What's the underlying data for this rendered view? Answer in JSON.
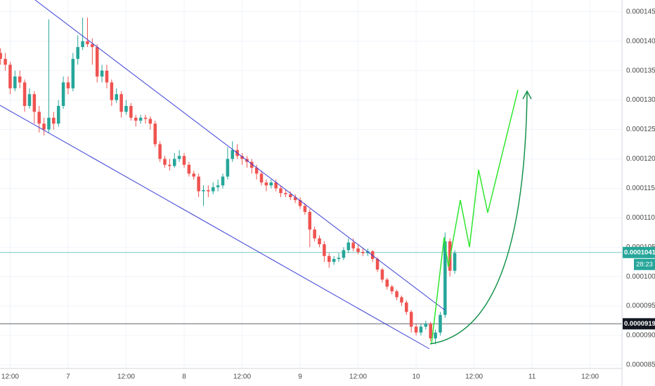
{
  "chart_data": {
    "type": "candlestick",
    "x": [
      -14,
      -13,
      -12,
      -11,
      -10,
      -9,
      -8,
      -7,
      -6,
      -5,
      -4,
      -3,
      -2,
      -1,
      0,
      1,
      2,
      3,
      4,
      5,
      6,
      7,
      8,
      9,
      10,
      11,
      12,
      13,
      14,
      15,
      16,
      17,
      18,
      19,
      20,
      21,
      22,
      23,
      24,
      25,
      26,
      27,
      28,
      29,
      30,
      31,
      32,
      33,
      34,
      35,
      36,
      37,
      38,
      39,
      40,
      41,
      42,
      43,
      44,
      45,
      46,
      47,
      48,
      49,
      50,
      51,
      52,
      53,
      54,
      55,
      56,
      57,
      58,
      59,
      60,
      61,
      62,
      63,
      64,
      65,
      66,
      67,
      68,
      69,
      70,
      71,
      72,
      73,
      74,
      75,
      76,
      77,
      78,
      79,
      80
    ],
    "open": [
      0.000138,
      0.000137,
      0.000136,
      0.000132,
      0.000134,
      0.000133,
      0.000129,
      0.000131,
      0.000128,
      0.000126,
      0.000125,
      0.000127,
      0.000126,
      0.000129,
      0.000133,
      0.000132,
      0.000137,
      0.000139,
      0.00014,
      0.0001395,
      0.000139,
      0.000134,
      0.000135,
      0.000133,
      0.00013,
      0.000131,
      0.000128,
      0.000129,
      0.000127,
      0.0001265,
      0.000127,
      0.0001268,
      0.000126,
      0.0001225,
      0.00012,
      0.000119,
      0.0001188,
      0.00012,
      0.0001205,
      0.000119,
      0.0001175,
      0.000117,
      0.0001145,
      0.0001147,
      0.0001145,
      0.0001152,
      0.0001155,
      0.000117,
      0.00012,
      0.0001215,
      0.0001205,
      0.00012,
      0.0001195,
      0.0001185,
      0.0001175,
      0.000116,
      0.0001155,
      0.000116,
      0.000115,
      0.0001142,
      0.000114,
      0.0001135,
      0.000113,
      0.000112,
      0.000111,
      0.000108,
      0.0001065,
      0.0001055,
      0.0001035,
      0.0001025,
      0.000103,
      0.0001032,
      0.0001045,
      0.0001058,
      0.0001048,
      0.0001042,
      0.000104,
      0.0001043,
      0.000103,
      0.0001012,
      9.95e-05,
      9.83e-05,
      9.75e-05,
      9.65e-05,
      9.56e-05,
      9.4e-05,
      9.15e-05,
      9.05e-05,
      9.15e-05,
      9.2e-05,
      8.95e-05,
      9.05e-05,
      9.35e-05,
      0.000106,
      0.000101
    ],
    "high": [
      0.0001388,
      0.000138,
      0.0001365,
      0.000135,
      0.000135,
      0.0001335,
      0.000132,
      0.0001315,
      0.000129,
      0.000127,
      0.0001437,
      0.000128,
      0.00013,
      0.000134,
      0.000134,
      0.000138,
      0.000141,
      0.000144,
      0.000144,
      0.0001405,
      0.0001395,
      0.000136,
      0.000136,
      0.0001335,
      0.000132,
      0.0001315,
      0.00013,
      0.0001295,
      0.0001275,
      0.0001275,
      0.0001275,
      0.0001272,
      0.0001265,
      0.000123,
      0.0001205,
      0.00012,
      0.000121,
      0.0001215,
      0.000121,
      0.0001195,
      0.000118,
      0.0001175,
      0.0001155,
      0.0001155,
      0.000116,
      0.0001165,
      0.0001175,
      0.000122,
      0.000123,
      0.0001225,
      0.000121,
      0.0001205,
      0.00012,
      0.000119,
      0.000118,
      0.0001165,
      0.0001165,
      0.0001165,
      0.0001155,
      0.0001148,
      0.0001145,
      0.000114,
      0.0001135,
      0.0001125,
      0.0001115,
      0.0001085,
      0.000107,
      0.000106,
      0.000104,
      0.0001035,
      0.000104,
      0.000105,
      0.0001065,
      0.0001065,
      0.0001055,
      0.0001048,
      0.0001048,
      0.0001045,
      0.0001033,
      0.0001015,
      9.98e-05,
      9.86e-05,
      9.78e-05,
      9.68e-05,
      9.6e-05,
      9.43e-05,
      9.2e-05,
      9.2e-05,
      9.25e-05,
      9.23e-05,
      9.1e-05,
      9.4e-05,
      0.0001075,
      0.0001065,
      0.0001045
    ],
    "low": [
      0.000136,
      0.000135,
      0.000131,
      0.0001315,
      0.000132,
      0.000128,
      0.0001285,
      0.000126,
      0.0001245,
      0.000124,
      0.0001245,
      0.000125,
      0.0001255,
      0.0001285,
      0.000131,
      0.0001315,
      0.000136,
      0.0001385,
      0.000139,
      0.000136,
      0.000133,
      0.000133,
      0.000132,
      0.000129,
      0.0001295,
      0.000127,
      0.0001275,
      0.0001265,
      0.0001255,
      0.000126,
      0.000126,
      0.000125,
      0.000122,
      0.0001195,
      0.0001185,
      0.000118,
      0.0001185,
      0.0001195,
      0.0001185,
      0.000117,
      0.0001165,
      0.0001135,
      0.000112,
      0.0001135,
      0.000114,
      0.0001145,
      0.000115,
      0.0001165,
      0.0001195,
      0.00012,
      0.000119,
      0.0001185,
      0.0001175,
      0.0001165,
      0.0001155,
      0.0001145,
      0.000115,
      0.0001145,
      0.0001135,
      0.0001135,
      0.000113,
      0.0001125,
      0.0001115,
      0.0001105,
      0.000105,
      0.000106,
      0.000105,
      0.0001025,
      0.0001015,
      0.000102,
      0.0001025,
      0.0001028,
      0.000104,
      0.0001043,
      0.0001038,
      0.0001035,
      0.0001035,
      0.0001025,
      0.0001008,
      9.9e-05,
      9.78e-05,
      9.7e-05,
      9.6e-05,
      9.5e-05,
      9.35e-05,
      9.05e-05,
      9e-05,
      9e-05,
      9.1e-05,
      8.9e-05,
      8.85e-05,
      9e-05,
      9.3e-05,
      0.0001,
      0.0001005
    ],
    "close": [
      0.000137,
      0.000136,
      0.000132,
      0.000134,
      0.000133,
      0.000129,
      0.000131,
      0.000128,
      0.000126,
      0.000125,
      0.000127,
      0.000126,
      0.000129,
      0.000133,
      0.000132,
      0.000137,
      0.000139,
      0.00014,
      0.0001395,
      0.000139,
      0.000134,
      0.000135,
      0.000133,
      0.00013,
      0.000131,
      0.000128,
      0.000129,
      0.000127,
      0.0001265,
      0.000127,
      0.0001268,
      0.000126,
      0.0001225,
      0.00012,
      0.000119,
      0.0001188,
      0.00012,
      0.0001205,
      0.000119,
      0.0001175,
      0.000117,
      0.0001145,
      0.0001147,
      0.0001145,
      0.0001152,
      0.0001155,
      0.000117,
      0.00012,
      0.0001215,
      0.0001205,
      0.00012,
      0.0001195,
      0.0001185,
      0.0001175,
      0.000116,
      0.0001155,
      0.000116,
      0.000115,
      0.0001142,
      0.000114,
      0.0001135,
      0.000113,
      0.000112,
      0.000111,
      0.000108,
      0.0001065,
      0.0001055,
      0.0001035,
      0.0001025,
      0.000103,
      0.0001032,
      0.0001045,
      0.0001058,
      0.0001048,
      0.0001042,
      0.000104,
      0.0001043,
      0.000103,
      0.0001012,
      9.95e-05,
      9.83e-05,
      9.75e-05,
      9.65e-05,
      9.56e-05,
      9.4e-05,
      9.15e-05,
      9.05e-05,
      9.15e-05,
      9.2e-05,
      8.95e-05,
      9.05e-05,
      9.35e-05,
      0.000106,
      0.000101,
      0.000104
    ],
    "up_color": "#26a69a",
    "down_color": "#ef5350",
    "xlim": [
      -14.1,
      114.6
    ],
    "xticks": [
      {
        "value": -12,
        "label": "12:00"
      },
      {
        "value": 0,
        "label": "7"
      },
      {
        "value": 12,
        "label": "12:00"
      },
      {
        "value": 24,
        "label": "8"
      },
      {
        "value": 36,
        "label": "12:00"
      },
      {
        "value": 48,
        "label": "9"
      },
      {
        "value": 60,
        "label": "12:00"
      },
      {
        "value": 72,
        "label": "10"
      },
      {
        "value": 84,
        "label": "12:00"
      },
      {
        "value": 96,
        "label": "11"
      },
      {
        "value": 108,
        "label": "12:00"
      }
    ],
    "ylim": [
      8.44e-05,
      0.000147
    ],
    "yticks": [
      {
        "value": 8.5e-05,
        "label": "0.00008500"
      },
      {
        "value": 9e-05,
        "label": "0.00009000"
      },
      {
        "value": 9.5e-05,
        "label": "0.00009500"
      },
      {
        "value": 0.0001,
        "label": "0.00010000"
      },
      {
        "value": 0.000105,
        "label": "0.00010500"
      },
      {
        "value": 0.00011,
        "label": "0.00011000"
      },
      {
        "value": 0.000115,
        "label": "0.00011500"
      },
      {
        "value": 0.00012,
        "label": "0.00012000"
      },
      {
        "value": 0.000125,
        "label": "0.00012500"
      },
      {
        "value": 0.00013,
        "label": "0.00013000"
      },
      {
        "value": 0.000135,
        "label": "0.00013500"
      },
      {
        "value": 0.00014,
        "label": "0.00014000"
      },
      {
        "value": 0.000145,
        "label": "0.00014500"
      }
    ],
    "grid": true,
    "price_lines": [
      {
        "value": 0.0001041,
        "label": "0.00010410",
        "color": "#26a69a",
        "countdown": "28:23"
      },
      {
        "value": 9.199e-05,
        "label": "0.00009199",
        "color": "#131722"
      }
    ]
  }
}
